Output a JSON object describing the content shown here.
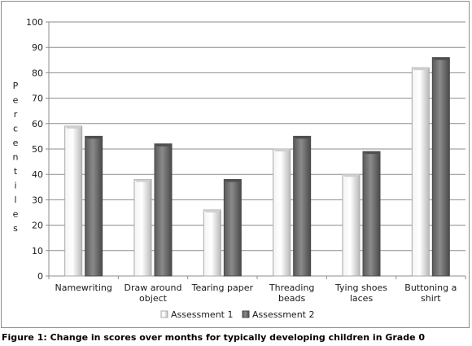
{
  "caption": "Figure 1: Change in scores over months for typically developing children in Grade 0",
  "chart_data": {
    "type": "bar",
    "categories": [
      [
        "Namewriting"
      ],
      [
        "Draw around",
        "object"
      ],
      [
        "Tearing paper"
      ],
      [
        "Threading",
        "beads"
      ],
      [
        "Tying shoes",
        "laces"
      ],
      [
        "Buttoning a",
        "shirt"
      ]
    ],
    "series": [
      {
        "name": "Assessment 1",
        "values": [
          59,
          38,
          26,
          50,
          40,
          82
        ],
        "color": "#d9d9d9"
      },
      {
        "name": "Assessment 2",
        "values": [
          55,
          52,
          38,
          55,
          49,
          86
        ],
        "color": "#6e6e6e"
      }
    ],
    "ylabel": "Percentiles",
    "ylim": [
      0,
      100
    ],
    "yticks": [
      0,
      10,
      20,
      30,
      40,
      50,
      60,
      70,
      80,
      90,
      100
    ],
    "grid": true,
    "legend_position": "bottom"
  }
}
